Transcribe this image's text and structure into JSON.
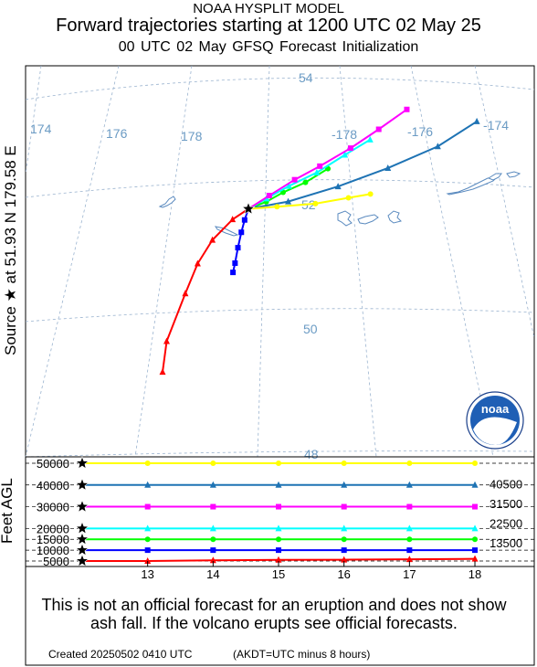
{
  "titles": {
    "line1": "NOAA HYSPLIT MODEL",
    "line2": "Forward trajectories starting at 1200 UTC 02 May 25",
    "line3": "00 UTC 02 May    GFSQ  Forecast Initialization"
  },
  "source_label": "Source ★  at   51.93 N  179.58 E",
  "map": {
    "lat_labels": [
      "54",
      "52",
      "50",
      "48"
    ],
    "lon_labels": [
      "174",
      "176",
      "178",
      "-178",
      "-176",
      "-174"
    ],
    "logo_text": "noaa"
  },
  "chart_data": {
    "type": "line",
    "source": {
      "lat": 51.93,
      "lon": 179.58
    },
    "x": [
      12,
      13,
      14,
      15,
      16,
      17,
      18
    ],
    "xlim": [
      12,
      18
    ],
    "ylabel": "Feet AGL",
    "ylim": [
      5000,
      50000
    ],
    "ytick_labels": [
      "50000",
      "40000",
      "30000",
      "20000",
      "15000",
      "10000",
      "5000"
    ],
    "right_labels": [
      "40500",
      "31500",
      "22500",
      "13500"
    ],
    "x_tick_labels": [
      "13",
      "14",
      "15",
      "16",
      "17",
      "18"
    ],
    "series": [
      {
        "color": "#ff0000",
        "marker": "triangle",
        "heights": [
          5000,
          5000,
          5300,
          5500,
          5600,
          5800,
          6000
        ],
        "track": [
          [
            51.93,
            179.58
          ],
          [
            51.75,
            179.3
          ],
          [
            51.4,
            178.95
          ],
          [
            51.0,
            178.7
          ],
          [
            50.5,
            178.5
          ],
          [
            49.7,
            178.2
          ],
          [
            49.2,
            178.15
          ]
        ]
      },
      {
        "color": "#0000ff",
        "marker": "square",
        "heights": [
          10000,
          10000,
          10000,
          10000,
          10000,
          10000,
          10000
        ],
        "track": [
          [
            51.93,
            179.58
          ],
          [
            51.75,
            179.52
          ],
          [
            51.55,
            179.47
          ],
          [
            51.3,
            179.42
          ],
          [
            51.05,
            179.38
          ],
          [
            50.9,
            179.35
          ]
        ]
      },
      {
        "color": "#00ff00",
        "marker": "circle",
        "heights": [
          15000,
          15000,
          15000,
          15000,
          15000,
          15000,
          15000
        ],
        "track": [
          [
            51.93,
            179.58
          ],
          [
            52.05,
            179.9
          ],
          [
            52.2,
            -179.8
          ],
          [
            52.35,
            -179.4
          ],
          [
            52.55,
            -179.0
          ]
        ]
      },
      {
        "color": "#00ffff",
        "marker": "triangle",
        "heights": [
          20000,
          20000,
          20000,
          20000,
          20000,
          20000,
          20000
        ],
        "track": [
          [
            51.93,
            179.58
          ],
          [
            52.1,
            179.9
          ],
          [
            52.3,
            -179.7
          ],
          [
            52.5,
            -179.2
          ],
          [
            52.75,
            -178.7
          ],
          [
            52.95,
            -178.25
          ]
        ]
      },
      {
        "color": "#ff00ff",
        "marker": "square",
        "heights": [
          30000,
          30000,
          30000,
          30000,
          30000,
          30000,
          30000
        ],
        "track": [
          [
            51.93,
            179.58
          ],
          [
            52.15,
            179.95
          ],
          [
            52.4,
            -179.6
          ],
          [
            52.6,
            -179.15
          ],
          [
            52.85,
            -178.6
          ],
          [
            53.1,
            -178.1
          ],
          [
            53.35,
            -177.6
          ]
        ]
      },
      {
        "color": "#1e73b4",
        "marker": "triangle",
        "heights": [
          40000,
          40000,
          40000,
          40000,
          40000,
          40000,
          40000
        ],
        "track": [
          [
            51.93,
            179.58
          ],
          [
            52.05,
            -179.7
          ],
          [
            52.25,
            -178.8
          ],
          [
            52.45,
            -177.9
          ],
          [
            52.65,
            -177.0
          ],
          [
            52.9,
            -176.3
          ]
        ]
      },
      {
        "color": "#ffff00",
        "marker": "circle",
        "heights": [
          50000,
          50000,
          50000,
          50000,
          50000,
          50000,
          50000
        ],
        "track": [
          [
            51.93,
            179.58
          ],
          [
            51.97,
            -179.9
          ],
          [
            52.0,
            -179.2
          ],
          [
            52.05,
            -178.6
          ],
          [
            52.07,
            -178.2
          ]
        ]
      }
    ]
  },
  "disclaimer": "This is not an official forecast for an eruption and does not show ash fall. If the volcano erupts see official forecasts.",
  "footer": {
    "created": "Created 20250502 0410 UTC",
    "note": "(AKDT=UTC minus 8 hours)"
  }
}
